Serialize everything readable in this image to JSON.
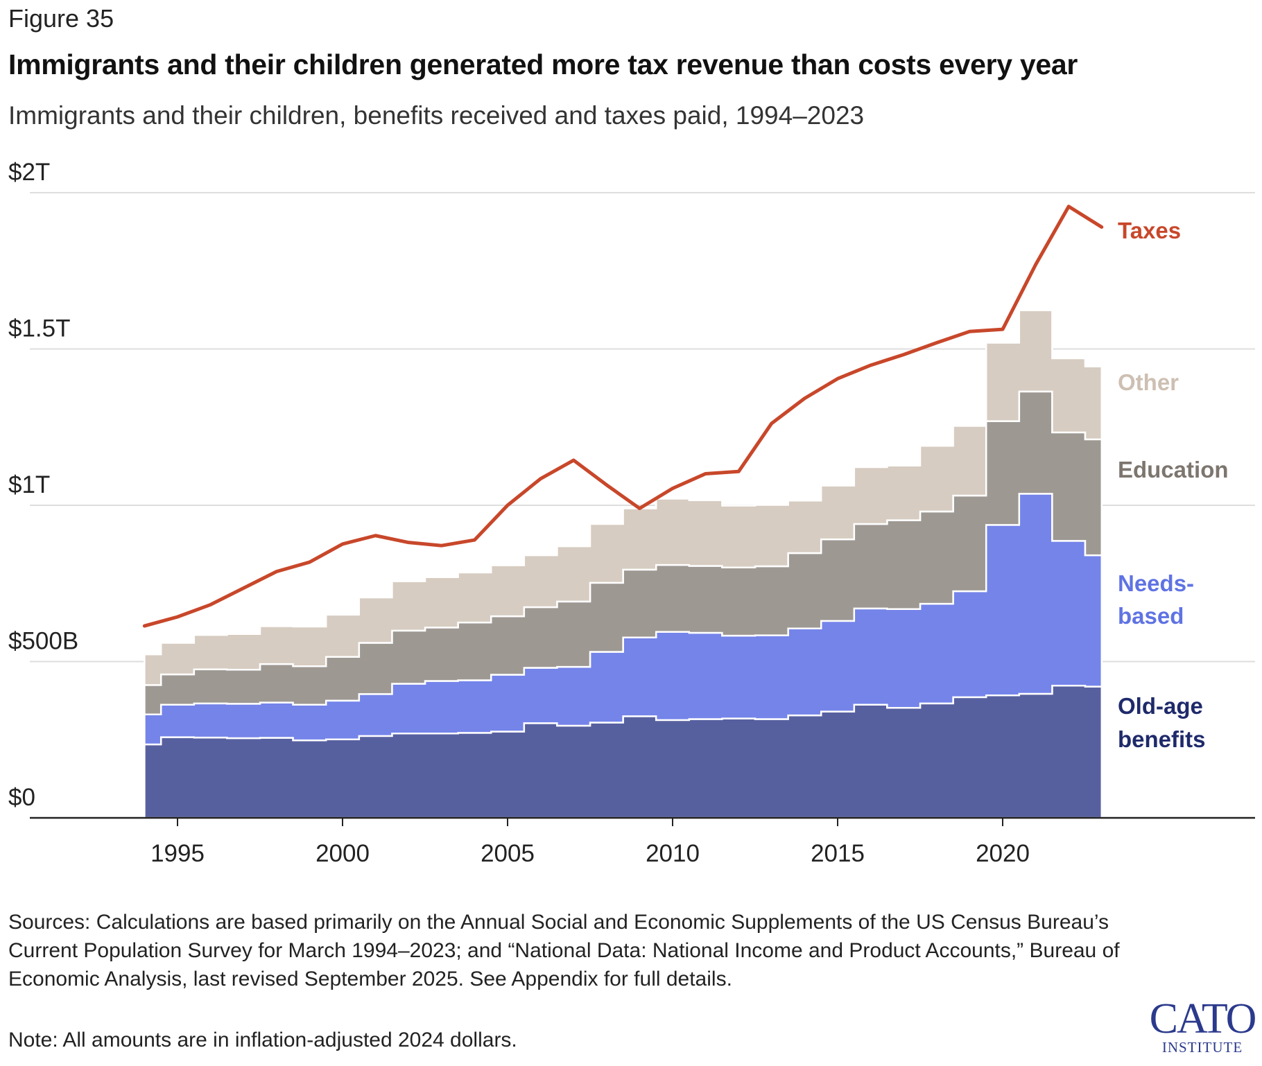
{
  "figure_label": "Figure 35",
  "title": "Immigrants and their children generated more tax revenue than costs every year",
  "subtitle": "Immigrants and their children, benefits received and taxes paid, 1994–2023",
  "sources": "Sources: Calculations are based primarily on the Annual Social and Economic Supplements of the US Census Bureau’s Current Population Survey for March 1994–2023; and “National Data: National Income and Product Accounts,” Bureau of Economic Analysis, last revised September 2025. See Appendix for full details.",
  "note": "Note: All amounts are in inflation-adjusted 2024 dollars.",
  "logo": {
    "top": "CATO",
    "bottom": "INSTITUTE"
  },
  "chart_data": {
    "type": "area",
    "stacked": true,
    "x": [
      1994,
      1995,
      1996,
      1997,
      1998,
      1999,
      2000,
      2001,
      2002,
      2003,
      2004,
      2005,
      2006,
      2007,
      2008,
      2009,
      2010,
      2011,
      2012,
      2013,
      2014,
      2015,
      2016,
      2017,
      2018,
      2019,
      2020,
      2021,
      2022,
      2023
    ],
    "xticks": [
      1995,
      2000,
      2005,
      2010,
      2015,
      2020
    ],
    "xtick_labels": [
      "1995",
      "2000",
      "2005",
      "2010",
      "2015",
      "2020"
    ],
    "ylim": [
      0,
      2000
    ],
    "yticks": [
      0,
      500,
      1000,
      1500,
      2000
    ],
    "ytick_labels": [
      "$0",
      "$500B",
      "$1T",
      "$1.5T",
      "$2T"
    ],
    "grid": true,
    "series": [
      {
        "name": "Old-age benefits",
        "label_lines": [
          "Old-age",
          "benefits"
        ],
        "color": "#57609f",
        "label_color": "#1f2a6b",
        "values": [
          235,
          258,
          257,
          255,
          256,
          248,
          251,
          262,
          270,
          270,
          272,
          276,
          303,
          295,
          305,
          325,
          313,
          316,
          318,
          316,
          328,
          340,
          362,
          352,
          366,
          386,
          392,
          397,
          423,
          420
        ]
      },
      {
        "name": "Needs-based",
        "label_lines": [
          "Needs-",
          "based"
        ],
        "color": "#7484e9",
        "label_color": "#5f73e3",
        "values": [
          96,
          104,
          109,
          110,
          113,
          114,
          124,
          134,
          159,
          168,
          168,
          182,
          177,
          188,
          226,
          252,
          282,
          276,
          265,
          268,
          278,
          290,
          308,
          316,
          319,
          339,
          545,
          640,
          463,
          420
        ]
      },
      {
        "name": "Education",
        "label_lines": [
          "Education"
        ],
        "color": "#9e9893",
        "label_color": "#7d766f",
        "values": [
          94,
          97,
          109,
          109,
          123,
          123,
          140,
          164,
          170,
          171,
          185,
          187,
          194,
          209,
          221,
          217,
          214,
          214,
          218,
          221,
          241,
          261,
          270,
          284,
          295,
          306,
          332,
          327,
          347,
          371
        ]
      },
      {
        "name": "Other",
        "label_lines": [
          "Other"
        ],
        "color": "#d7ccc1",
        "label_color": "#cdbfb2",
        "values": [
          98,
          101,
          110,
          114,
          121,
          127,
          135,
          145,
          158,
          161,
          160,
          163,
          166,
          177,
          188,
          196,
          212,
          210,
          198,
          196,
          168,
          172,
          182,
          175,
          210,
          223,
          251,
          260,
          237,
          233
        ]
      }
    ],
    "line": {
      "name": "Taxes",
      "color": "#c8472a",
      "values": [
        614,
        643,
        682,
        735,
        788,
        818,
        876,
        903,
        881,
        871,
        889,
        1000,
        1085,
        1144,
        1065,
        990,
        1054,
        1101,
        1108,
        1262,
        1342,
        1405,
        1448,
        1482,
        1520,
        1556,
        1563,
        1770,
        1956,
        1890
      ]
    }
  }
}
